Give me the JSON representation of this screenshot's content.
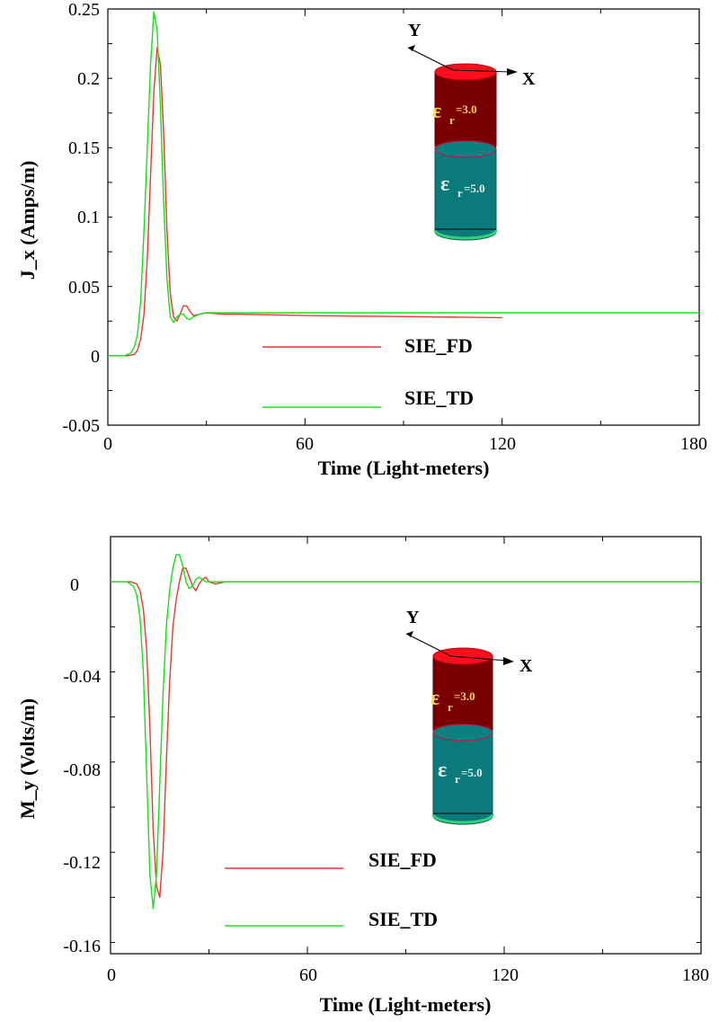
{
  "colors": {
    "fd": "#e23b2e",
    "td": "#18e018",
    "cyl_top": "#ff0f1e",
    "cyl_upper": "#7a0000",
    "cyl_lower": "#0a7a7a",
    "cyl_bottom": "#32d27a",
    "eps_upper": "#ffd84a",
    "eps_lower": "#e8f0f0"
  },
  "chart_data": [
    {
      "type": "line",
      "ylabel": "J_x (Amps/m)",
      "xlabel": "Time (Light-meters)",
      "xlim": [
        0,
        180
      ],
      "ylim": [
        -0.05,
        0.25
      ],
      "x_ticks": [
        "0",
        "60",
        "120",
        "180"
      ],
      "y_ticks": [
        "0.25",
        "0.2",
        "0.15",
        "0.1",
        "0.05",
        "0",
        "-0.05"
      ],
      "legend": [
        "SIE_FD",
        "SIE_TD"
      ],
      "inset": {
        "x_axis": "X",
        "y_axis": "Y",
        "upper_eps": "=3.0",
        "lower_eps": "=5.0"
      },
      "series": [
        {
          "name": "SIE_FD",
          "x": [
            0,
            6,
            8,
            9,
            10,
            11,
            12,
            13,
            14,
            15,
            16,
            17,
            18,
            19,
            20,
            21,
            22,
            23,
            24,
            25,
            26,
            28,
            30,
            35,
            40,
            50,
            60,
            80,
            100,
            120
          ],
          "y": [
            0,
            0,
            0.001,
            0.004,
            0.012,
            0.03,
            0.07,
            0.13,
            0.19,
            0.222,
            0.21,
            0.16,
            0.09,
            0.045,
            0.028,
            0.025,
            0.03,
            0.036,
            0.036,
            0.032,
            0.029,
            0.03,
            0.031,
            0.03,
            0.03,
            0.0295,
            0.029,
            0.0285,
            0.028,
            0.0275
          ]
        },
        {
          "name": "SIE_TD",
          "x": [
            0,
            5,
            7,
            8,
            9,
            10,
            11,
            12,
            13,
            14,
            15,
            16,
            17,
            18,
            19,
            20,
            21,
            22,
            23,
            24,
            25,
            26,
            28,
            30,
            35,
            40,
            60,
            80,
            120,
            180
          ],
          "y": [
            0,
            0,
            0.002,
            0.006,
            0.015,
            0.04,
            0.09,
            0.15,
            0.21,
            0.248,
            0.235,
            0.18,
            0.11,
            0.055,
            0.028,
            0.024,
            0.028,
            0.03,
            0.03,
            0.027,
            0.026,
            0.028,
            0.03,
            0.031,
            0.031,
            0.031,
            0.031,
            0.031,
            0.031,
            0.031
          ]
        }
      ]
    },
    {
      "type": "line",
      "ylabel": "M_y (Volts/m)",
      "xlabel": "Time (Light-meters)",
      "xlim": [
        0,
        180
      ],
      "ylim": [
        -0.165,
        0.02
      ],
      "y_tick_values": [
        0,
        -0.04,
        -0.08,
        -0.12,
        -0.16
      ],
      "x_ticks": [
        "0",
        "60",
        "120",
        "180"
      ],
      "y_ticks": [
        "0",
        "-0.04",
        "-0.08",
        "-0.12",
        "-0.16"
      ],
      "legend": [
        "SIE_FD",
        "SIE_TD"
      ],
      "inset": {
        "x_axis": "X",
        "y_axis": "Y",
        "upper_eps": "=3.0",
        "lower_eps": "=5.0"
      },
      "series": [
        {
          "name": "SIE_FD",
          "x": [
            0,
            6,
            8,
            9,
            10,
            11,
            12,
            13,
            14,
            15,
            16,
            17,
            18,
            19,
            20,
            21,
            22,
            23,
            24,
            25,
            26,
            27,
            28,
            29,
            30,
            32,
            35,
            40,
            50,
            180
          ],
          "y": [
            0,
            0,
            -0.001,
            -0.004,
            -0.012,
            -0.03,
            -0.065,
            -0.11,
            -0.135,
            -0.14,
            -0.12,
            -0.08,
            -0.045,
            -0.02,
            -0.008,
            0.0,
            0.006,
            0.006,
            0.002,
            -0.002,
            -0.004,
            -0.001,
            0.001,
            0.002,
            0.0,
            -0.001,
            0.0,
            0.0,
            0.0,
            0.0
          ]
        },
        {
          "name": "SIE_TD",
          "x": [
            0,
            5,
            7,
            8,
            9,
            10,
            11,
            12,
            13,
            14,
            15,
            16,
            17,
            18,
            19,
            20,
            21,
            22,
            23,
            24,
            25,
            26,
            27,
            28,
            29,
            30,
            32,
            35,
            40,
            180
          ],
          "y": [
            0,
            0,
            -0.002,
            -0.006,
            -0.016,
            -0.04,
            -0.085,
            -0.13,
            -0.145,
            -0.13,
            -0.09,
            -0.05,
            -0.02,
            -0.004,
            0.006,
            0.012,
            0.012,
            0.007,
            0.0,
            -0.003,
            -0.002,
            0.001,
            0.002,
            0.001,
            0.0,
            0.0,
            0.0,
            0.0,
            0.0,
            0.0
          ]
        }
      ]
    }
  ]
}
